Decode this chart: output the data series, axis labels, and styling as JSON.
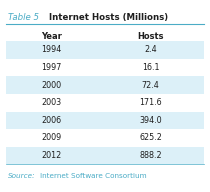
{
  "title_prefix": "Table 5",
  "title_main": "Internet Hosts (Millions)",
  "col_headers": [
    "Year",
    "Hosts"
  ],
  "rows": [
    [
      "1994",
      "2.4"
    ],
    [
      "1997",
      "16.1"
    ],
    [
      "2000",
      "72.4"
    ],
    [
      "2003",
      "171.6"
    ],
    [
      "2006",
      "394.0"
    ],
    [
      "2009",
      "625.2"
    ],
    [
      "2012",
      "888.2"
    ]
  ],
  "title_color": "#4BACC6",
  "title_bold_color": "#1F1F1F",
  "header_text_color": "#1F1F1F",
  "row_text_color": "#1F1F1F",
  "alt_row_color": "#DCF0F8",
  "white_row_color": "#FFFFFF",
  "source_italic_color": "#4BACC6",
  "source_normal_color": "#4BACC6",
  "line_color": "#4BACC6",
  "background_color": "#FFFFFF"
}
